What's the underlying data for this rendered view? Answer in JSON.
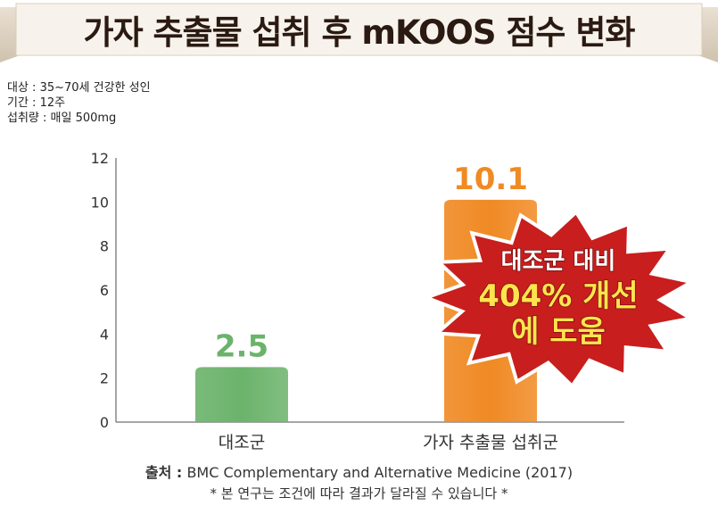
{
  "title": "가자 추출물 섭취 후 mKOOS 점수 변화",
  "meta": {
    "subjects": "대상 : 35~70세 건강한 성인",
    "period": "기간 : 12주",
    "intake": "섭취량 : 매일 500mg"
  },
  "chart_data": {
    "type": "bar",
    "categories": [
      "대조군",
      "가자 추출물  섭취군"
    ],
    "values": [
      2.5,
      10.1
    ],
    "value_labels": [
      "2.5",
      "10.1"
    ],
    "colors": [
      "#6bb36b",
      "#f08a24"
    ],
    "ylim": [
      0,
      12
    ],
    "yticks": [
      "0",
      "2",
      "4",
      "6",
      "8",
      "10",
      "12"
    ],
    "ytick_values": [
      0,
      2,
      4,
      6,
      8,
      10,
      12
    ],
    "grid": false,
    "annotation": {
      "line1": "대조군 대비",
      "line2": "404% 개선",
      "line3": "에 도움"
    }
  },
  "footer": {
    "source_label": "출처 :",
    "source": "BMC Complementary and Alternative Medicine (2017)",
    "note": "* 본 연구는 조건에 따라 결과가 달라질 수 있습니다 *"
  }
}
